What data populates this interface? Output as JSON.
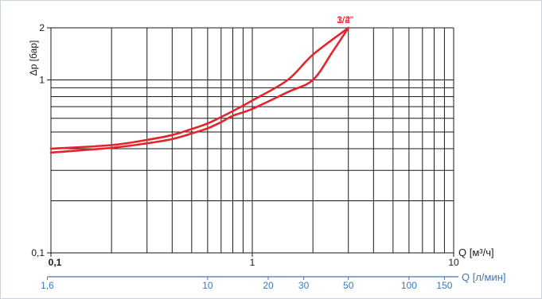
{
  "chart_data": {
    "type": "line",
    "title": "",
    "ylabel": "Δp [бар]",
    "xlabel": "Q [м³/ч]",
    "x2label": "Q [л/мин]",
    "xscale": "log",
    "yscale": "log",
    "xlim": [
      0.1,
      10
    ],
    "ylim": [
      0.1,
      2
    ],
    "grid": true,
    "x_tick_labels": [
      "0,1",
      "1",
      "10"
    ],
    "y_tick_labels": [
      "0,1",
      "1",
      "2"
    ],
    "x2_tick_labels": [
      "1,6",
      "10",
      "20",
      "30",
      "50",
      "100",
      "150"
    ],
    "x2_tick_values": [
      1.6,
      10,
      20,
      30,
      50,
      100,
      150
    ],
    "legend_placement": "top, at line ends",
    "series": [
      {
        "name": "1/2\"",
        "color": "#e3242b",
        "x": [
          0.1,
          0.2,
          0.3,
          0.4,
          0.5,
          0.6,
          0.7,
          0.8,
          1.0,
          1.5,
          2.0,
          3.0
        ],
        "y": [
          0.4,
          0.42,
          0.45,
          0.48,
          0.52,
          0.56,
          0.61,
          0.66,
          0.76,
          1.0,
          1.4,
          2.0
        ]
      },
      {
        "name": "3/4\"",
        "color": "#e3242b",
        "x": [
          0.1,
          0.2,
          0.3,
          0.4,
          0.5,
          0.6,
          0.7,
          0.8,
          1.0,
          1.5,
          2.0,
          2.5,
          3.0
        ],
        "y": [
          0.38,
          0.405,
          0.43,
          0.455,
          0.49,
          0.525,
          0.57,
          0.62,
          0.68,
          0.85,
          1.0,
          1.45,
          2.0
        ]
      }
    ]
  },
  "colors": {
    "grid": "#1a1a1a",
    "secondary_axis": "#3d78b8",
    "frame": "#c9d3e0"
  }
}
